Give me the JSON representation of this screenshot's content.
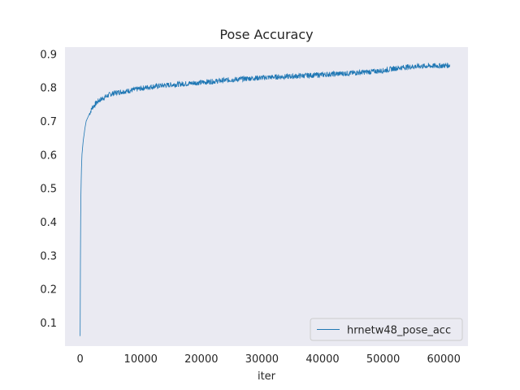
{
  "chart_data": {
    "type": "line",
    "title": "Pose Accuracy",
    "xlabel": "iter",
    "ylabel": "",
    "xlim": [
      -2500,
      64000
    ],
    "ylim": [
      0.03,
      0.92
    ],
    "xticks": [
      0,
      10000,
      20000,
      30000,
      40000,
      50000,
      60000
    ],
    "xtick_labels": [
      "0",
      "10000",
      "20000",
      "30000",
      "40000",
      "50000",
      "60000"
    ],
    "yticks": [
      0.1,
      0.2,
      0.3,
      0.4,
      0.5,
      0.6,
      0.7,
      0.8,
      0.9
    ],
    "ytick_labels": [
      "0.1",
      "0.2",
      "0.3",
      "0.4",
      "0.5",
      "0.6",
      "0.7",
      "0.8",
      "0.9"
    ],
    "grid": false,
    "legend_position": "lower-right",
    "background_color": "#eaeaf2",
    "series": [
      {
        "name": "hrnetw48_pose_acc",
        "color": "#1f77b4",
        "x": [
          0,
          50,
          100,
          200,
          300,
          500,
          800,
          1000,
          1500,
          2000,
          3000,
          4000,
          5000,
          6000,
          8000,
          10000,
          12000,
          15000,
          18000,
          20000,
          22000,
          25000,
          28000,
          30000,
          32000,
          35000,
          38000,
          40000,
          42000,
          45000,
          48000,
          50000,
          52000,
          54000,
          56000,
          58000,
          60000,
          61000
        ],
        "y": [
          0.06,
          0.3,
          0.45,
          0.55,
          0.6,
          0.64,
          0.68,
          0.7,
          0.72,
          0.74,
          0.76,
          0.77,
          0.78,
          0.785,
          0.79,
          0.797,
          0.803,
          0.808,
          0.812,
          0.815,
          0.818,
          0.823,
          0.827,
          0.829,
          0.831,
          0.833,
          0.836,
          0.838,
          0.84,
          0.843,
          0.847,
          0.85,
          0.857,
          0.861,
          0.863,
          0.864,
          0.865,
          0.866
        ]
      }
    ]
  }
}
